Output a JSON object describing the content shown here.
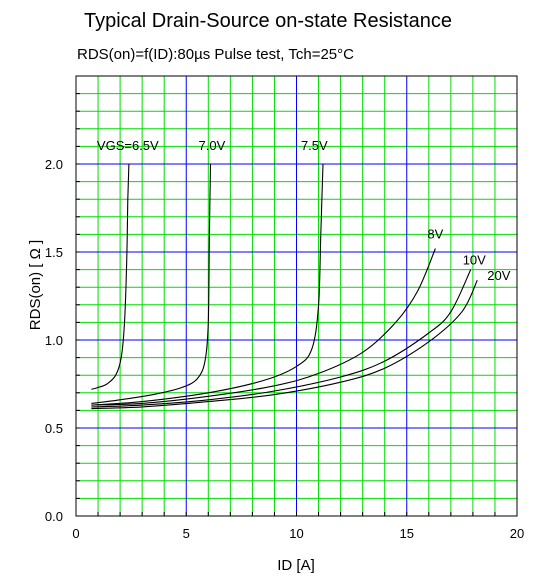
{
  "chart_data": {
    "type": "line",
    "title": "Typical Drain-Source on-state Resistance",
    "subtitle": "RDS(on)=f(ID):80µs Pulse test, Tch=25°C",
    "xlabel": "ID [A]",
    "ylabel": "RDS(on) [ Ω ]",
    "xlim": [
      0,
      20
    ],
    "ylim": [
      0,
      2.5
    ],
    "x_ticks": [
      "0",
      "5",
      "10",
      "15",
      "20"
    ],
    "y_ticks": [
      "0.0",
      "0.5",
      "1.0",
      "1.5",
      "2.0"
    ],
    "grid": true,
    "colors": {
      "minor_grid": "#00dd00",
      "major_grid": "#0000ff",
      "curves": "#000000"
    },
    "series": [
      {
        "name": "VGS=6.5V",
        "x": [
          0.7,
          1.0,
          1.4,
          1.8,
          2.05,
          2.2,
          2.3,
          2.35,
          2.4
        ],
        "y": [
          0.72,
          0.73,
          0.75,
          0.8,
          0.9,
          1.1,
          1.45,
          1.8,
          2.0
        ]
      },
      {
        "name": "7.0V",
        "x": [
          0.7,
          2.0,
          3.5,
          4.8,
          5.5,
          5.85,
          6.0,
          6.05,
          6.1
        ],
        "y": [
          0.64,
          0.66,
          0.69,
          0.73,
          0.78,
          0.88,
          1.1,
          1.6,
          2.0
        ]
      },
      {
        "name": "7.5V",
        "x": [
          0.7,
          3.0,
          6.0,
          8.5,
          10.0,
          10.7,
          11.0,
          11.1,
          11.2
        ],
        "y": [
          0.63,
          0.65,
          0.7,
          0.77,
          0.85,
          0.95,
          1.2,
          1.6,
          2.0
        ]
      },
      {
        "name": "8V",
        "x": [
          0.7,
          3.0,
          6.0,
          9.0,
          11.0,
          13.0,
          14.5,
          15.5,
          16.3
        ],
        "y": [
          0.63,
          0.64,
          0.68,
          0.74,
          0.81,
          0.93,
          1.1,
          1.28,
          1.52
        ]
      },
      {
        "name": "10V",
        "x": [
          0.7,
          3.0,
          6.0,
          9.0,
          12.0,
          14.0,
          16.0,
          17.0,
          17.9
        ],
        "y": [
          0.62,
          0.63,
          0.66,
          0.71,
          0.79,
          0.88,
          1.04,
          1.16,
          1.4
        ]
      },
      {
        "name": "20V",
        "x": [
          0.7,
          3.0,
          6.0,
          9.0,
          12.0,
          14.0,
          16.0,
          17.5,
          18.2
        ],
        "y": [
          0.61,
          0.62,
          0.65,
          0.69,
          0.76,
          0.84,
          0.99,
          1.16,
          1.34
        ]
      }
    ]
  }
}
